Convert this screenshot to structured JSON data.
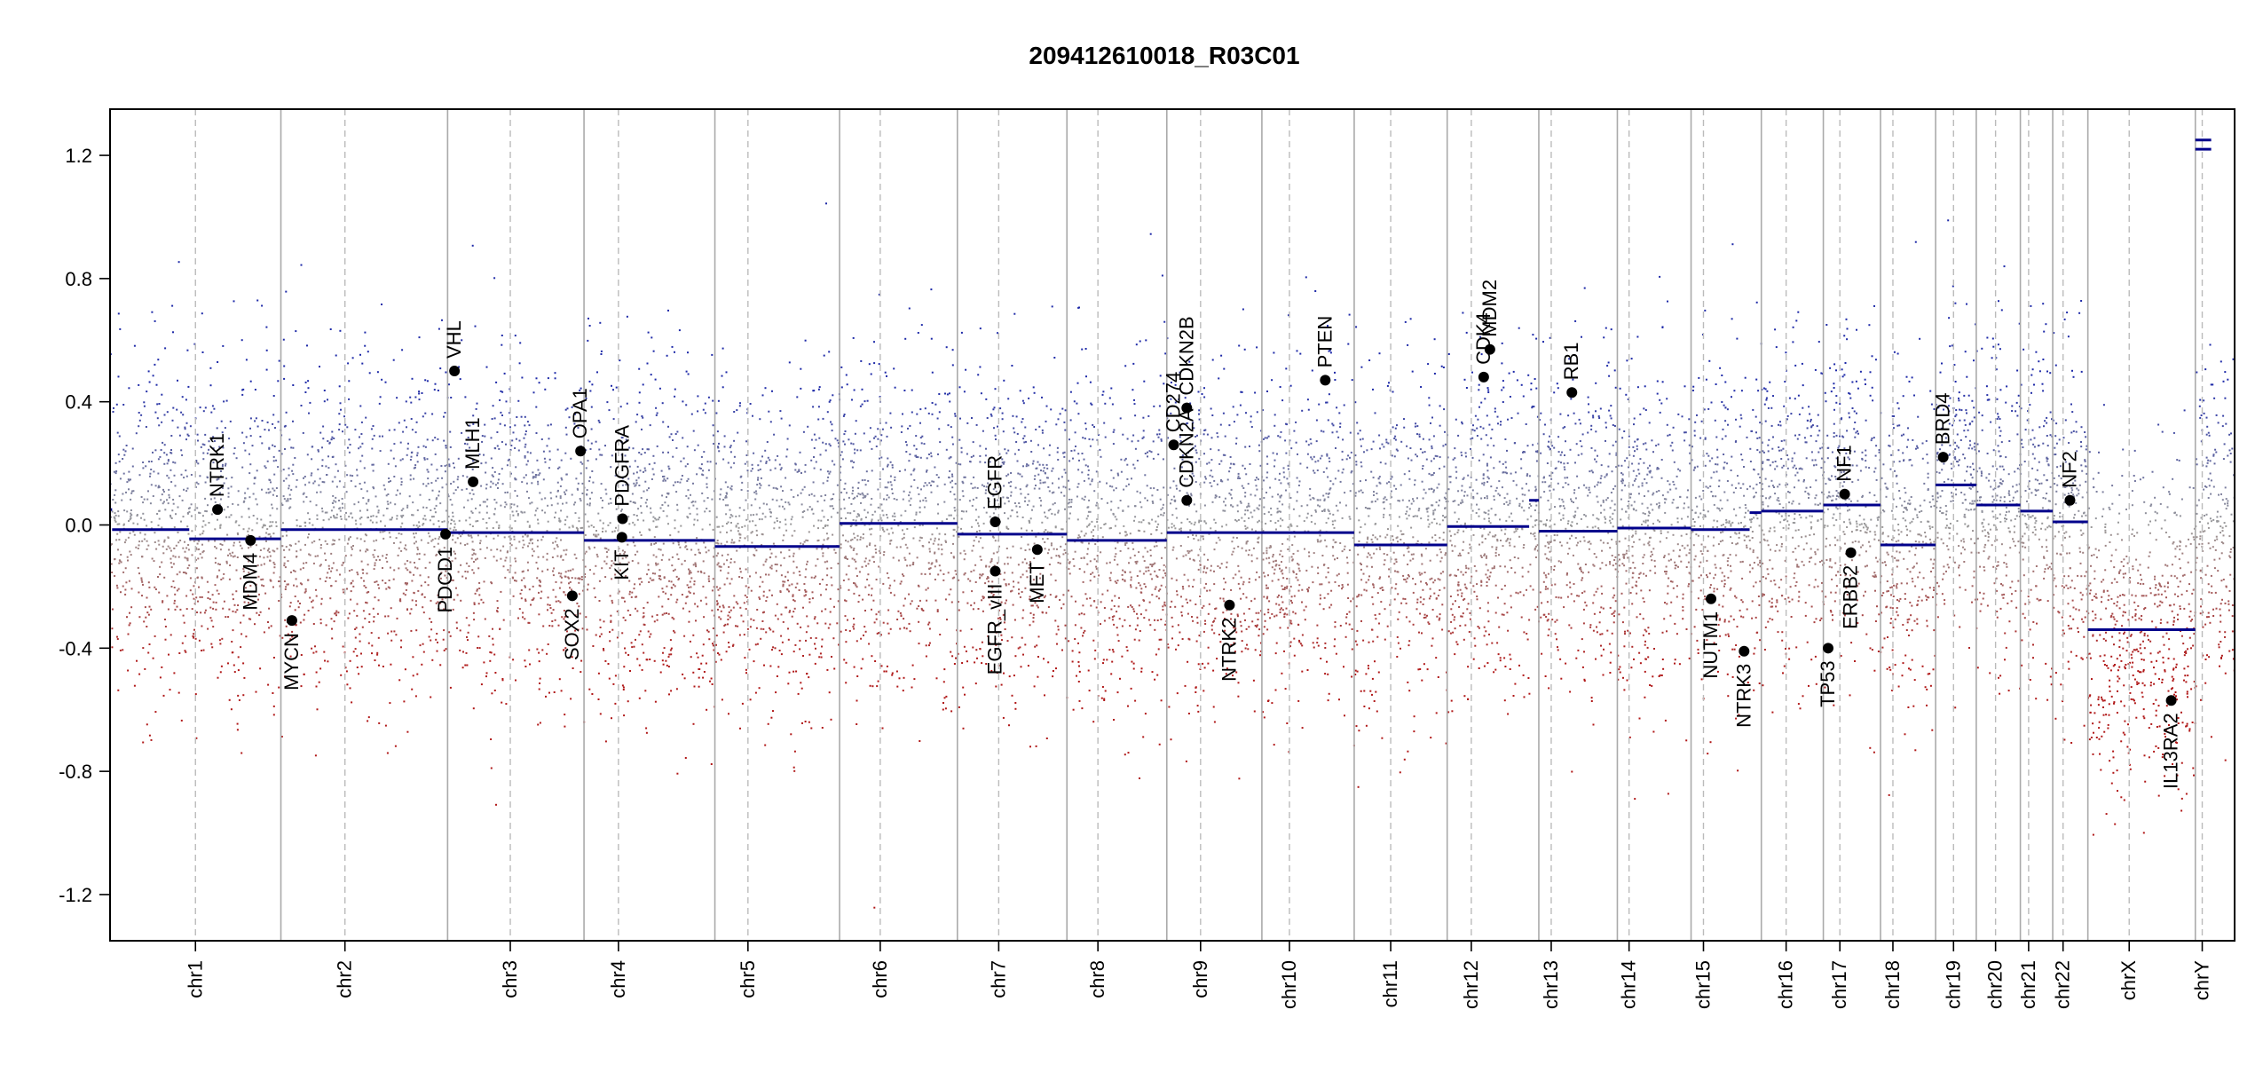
{
  "chart_data": {
    "type": "scatter",
    "title": "209412610018_R03C01",
    "xlabel": "",
    "ylabel": "",
    "ylim": [
      -1.35,
      1.35
    ],
    "yticks": [
      -1.2,
      -0.8,
      -0.4,
      0.0,
      0.4,
      0.8,
      1.2
    ],
    "ytick_labels": [
      "-1.2",
      "-0.8",
      "-0.4",
      "0.0",
      "0.4",
      "0.8",
      "1.2"
    ],
    "colors": {
      "gain": "#1e2aa8",
      "loss": "#b01818",
      "neutral": "#9a9a9a",
      "segment": "#00008b",
      "boundary": "#aaaaaa",
      "gene": "#000000"
    },
    "chromosomes": [
      {
        "name": "chr1",
        "start": 0,
        "end": 248,
        "centromere": 124,
        "segments": [
          {
            "s": 0,
            "e": 3,
            "v": 0.05
          },
          {
            "s": 3,
            "e": 115,
            "v": -0.015
          },
          {
            "s": 115,
            "e": 248,
            "v": -0.045
          }
        ]
      },
      {
        "name": "chr2",
        "start": 248,
        "end": 490,
        "centromere": 341,
        "segments": [
          {
            "s": 248,
            "e": 490,
            "v": -0.015
          }
        ]
      },
      {
        "name": "chr3",
        "start": 490,
        "end": 688,
        "centromere": 581,
        "segments": [
          {
            "s": 490,
            "e": 688,
            "v": -0.025
          }
        ]
      },
      {
        "name": "chr4",
        "start": 688,
        "end": 878,
        "centromere": 738,
        "segments": [
          {
            "s": 688,
            "e": 878,
            "v": -0.05
          }
        ]
      },
      {
        "name": "chr5",
        "start": 878,
        "end": 1059,
        "centromere": 926,
        "segments": [
          {
            "s": 878,
            "e": 1059,
            "v": -0.07
          }
        ]
      },
      {
        "name": "chr6",
        "start": 1059,
        "end": 1230,
        "centromere": 1118,
        "segments": [
          {
            "s": 1059,
            "e": 1230,
            "v": 0.005
          }
        ]
      },
      {
        "name": "chr7",
        "start": 1230,
        "end": 1389,
        "centromere": 1290,
        "segments": [
          {
            "s": 1230,
            "e": 1389,
            "v": -0.03
          }
        ]
      },
      {
        "name": "chr8",
        "start": 1389,
        "end": 1534,
        "centromere": 1434,
        "segments": [
          {
            "s": 1389,
            "e": 1534,
            "v": -0.05
          }
        ]
      },
      {
        "name": "chr9",
        "start": 1534,
        "end": 1672,
        "centromere": 1583,
        "segments": [
          {
            "s": 1534,
            "e": 1672,
            "v": -0.025
          }
        ]
      },
      {
        "name": "chr10",
        "start": 1672,
        "end": 1806,
        "centromere": 1712,
        "segments": [
          {
            "s": 1672,
            "e": 1806,
            "v": -0.025
          }
        ]
      },
      {
        "name": "chr11",
        "start": 1806,
        "end": 1941,
        "centromere": 1859,
        "segments": [
          {
            "s": 1806,
            "e": 1941,
            "v": -0.065
          }
        ]
      },
      {
        "name": "chr12",
        "start": 1941,
        "end": 2074,
        "centromere": 1976,
        "segments": [
          {
            "s": 1941,
            "e": 2060,
            "v": -0.005
          },
          {
            "s": 2060,
            "e": 2074,
            "v": 0.08
          }
        ]
      },
      {
        "name": "chr13",
        "start": 2074,
        "end": 2188,
        "centromere": 2092,
        "segments": [
          {
            "s": 2074,
            "e": 2188,
            "v": -0.02
          }
        ]
      },
      {
        "name": "chr14",
        "start": 2188,
        "end": 2295,
        "centromere": 2205,
        "segments": [
          {
            "s": 2188,
            "e": 2295,
            "v": -0.01
          }
        ]
      },
      {
        "name": "chr15",
        "start": 2295,
        "end": 2397,
        "centromere": 2313,
        "segments": [
          {
            "s": 2295,
            "e": 2380,
            "v": -0.015
          },
          {
            "s": 2380,
            "e": 2397,
            "v": 0.04
          }
        ]
      },
      {
        "name": "chr16",
        "start": 2397,
        "end": 2487,
        "centromere": 2433,
        "segments": [
          {
            "s": 2397,
            "e": 2487,
            "v": 0.045
          }
        ]
      },
      {
        "name": "chr17",
        "start": 2487,
        "end": 2570,
        "centromere": 2511,
        "segments": [
          {
            "s": 2487,
            "e": 2570,
            "v": 0.065
          }
        ]
      },
      {
        "name": "chr18",
        "start": 2570,
        "end": 2650,
        "centromere": 2588,
        "segments": [
          {
            "s": 2570,
            "e": 2650,
            "v": -0.065
          }
        ]
      },
      {
        "name": "chr19",
        "start": 2650,
        "end": 2709,
        "centromere": 2676,
        "segments": [
          {
            "s": 2650,
            "e": 2709,
            "v": 0.13
          }
        ]
      },
      {
        "name": "chr20",
        "start": 2709,
        "end": 2773,
        "centromere": 2737,
        "segments": [
          {
            "s": 2709,
            "e": 2773,
            "v": 0.065
          }
        ]
      },
      {
        "name": "chr21",
        "start": 2773,
        "end": 2820,
        "centromere": 2785,
        "segments": [
          {
            "s": 2773,
            "e": 2820,
            "v": 0.045
          }
        ]
      },
      {
        "name": "chr22",
        "start": 2820,
        "end": 2871,
        "centromere": 2835,
        "segments": [
          {
            "s": 2820,
            "e": 2871,
            "v": 0.01
          }
        ]
      },
      {
        "name": "chrX",
        "start": 2871,
        "end": 3027,
        "centromere": 2931,
        "segments": [
          {
            "s": 2871,
            "e": 3027,
            "v": -0.34
          }
        ]
      },
      {
        "name": "chrY",
        "start": 3027,
        "end": 3084,
        "centromere": 3037,
        "segments": [
          {
            "s": 3027,
            "e": 3050,
            "v": 1.25
          },
          {
            "s": 3027,
            "e": 3050,
            "v": 1.22
          }
        ]
      }
    ],
    "genes": [
      {
        "name": "NTRK1",
        "x": 156,
        "y": 0.05,
        "side": "up"
      },
      {
        "name": "MDM4",
        "x": 204,
        "y": -0.05,
        "side": "down"
      },
      {
        "name": "MYCN",
        "x": 264,
        "y": -0.31,
        "side": "down"
      },
      {
        "name": "VHL",
        "x": 500,
        "y": 0.5,
        "side": "up"
      },
      {
        "name": "PDCD1",
        "x": 487,
        "y": -0.03,
        "side": "down"
      },
      {
        "name": "MLH1",
        "x": 527,
        "y": 0.14,
        "side": "up"
      },
      {
        "name": "SOX2",
        "x": 671,
        "y": -0.23,
        "side": "down"
      },
      {
        "name": "OPA1",
        "x": 683,
        "y": 0.24,
        "side": "up"
      },
      {
        "name": "KIT",
        "x": 743,
        "y": -0.04,
        "side": "down"
      },
      {
        "name": "PDGFRA",
        "x": 744,
        "y": 0.02,
        "side": "up"
      },
      {
        "name": "EGFR",
        "x": 1285,
        "y": 0.01,
        "side": "up"
      },
      {
        "name": "EGFR_vIII",
        "x": 1285,
        "y": -0.15,
        "side": "down"
      },
      {
        "name": "MET",
        "x": 1346,
        "y": -0.08,
        "side": "down"
      },
      {
        "name": "CD274",
        "x": 1544,
        "y": 0.26,
        "side": "up"
      },
      {
        "name": "CDKN2A",
        "x": 1563,
        "y": 0.08,
        "side": "up"
      },
      {
        "name": "CDKN2B",
        "x": 1563,
        "y": 0.38,
        "side": "up"
      },
      {
        "name": "NTRK2",
        "x": 1625,
        "y": -0.26,
        "side": "down"
      },
      {
        "name": "PTEN",
        "x": 1764,
        "y": 0.47,
        "side": "up"
      },
      {
        "name": "CDK4",
        "x": 1994,
        "y": 0.48,
        "side": "up"
      },
      {
        "name": "MDM2",
        "x": 2003,
        "y": 0.57,
        "side": "up"
      },
      {
        "name": "RB1",
        "x": 2122,
        "y": 0.43,
        "side": "up"
      },
      {
        "name": "NUTM1",
        "x": 2324,
        "y": -0.24,
        "side": "down"
      },
      {
        "name": "NTRK3",
        "x": 2372,
        "y": -0.41,
        "side": "down"
      },
      {
        "name": "TP53",
        "x": 2494,
        "y": -0.4,
        "side": "down"
      },
      {
        "name": "NF1",
        "x": 2518,
        "y": 0.1,
        "side": "up"
      },
      {
        "name": "ERBB2",
        "x": 2527,
        "y": -0.09,
        "side": "down"
      },
      {
        "name": "BRD4",
        "x": 2661,
        "y": 0.22,
        "side": "up"
      },
      {
        "name": "NF2",
        "x": 2845,
        "y": 0.08,
        "side": "up"
      },
      {
        "name": "IL13RA2",
        "x": 2992,
        "y": -0.57,
        "side": "down"
      }
    ]
  }
}
